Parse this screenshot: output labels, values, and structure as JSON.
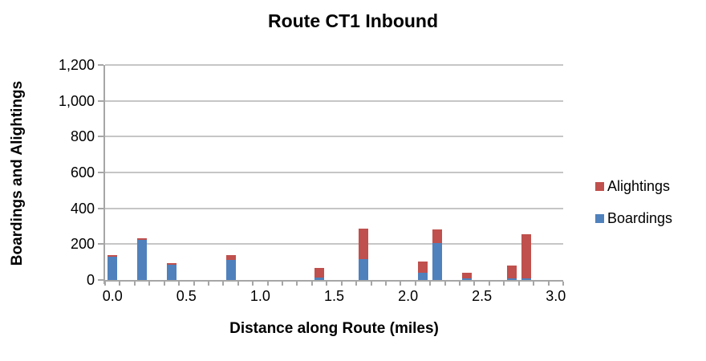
{
  "chart_data": {
    "type": "bar",
    "stacked": true,
    "title": "Route CT1 Inbound",
    "xlabel": "Distance along Route (miles)",
    "ylabel": "Boardings and Alightings",
    "x_values": [
      0.0,
      0.2,
      0.4,
      0.8,
      1.4,
      1.7,
      2.1,
      2.2,
      2.4,
      2.7,
      2.8
    ],
    "series": [
      {
        "name": "Boardings",
        "color": "#4F81BD",
        "values": [
          130,
          225,
          85,
          110,
          15,
          115,
          40,
          205,
          10,
          10,
          10
        ]
      },
      {
        "name": "Alightings",
        "color": "#C0504D",
        "values": [
          10,
          10,
          10,
          30,
          50,
          170,
          65,
          75,
          30,
          70,
          245
        ]
      }
    ],
    "y_axis": {
      "min": 0,
      "max": 1200,
      "step": 200,
      "tick_labels": [
        "0",
        "200",
        "400",
        "600",
        "800",
        "1,000",
        "1,200"
      ]
    },
    "x_axis": {
      "min": 0.0,
      "max": 3.0,
      "category_step": 0.1,
      "label_step": 0.5,
      "tick_labels": [
        "0.0",
        "0.5",
        "1.0",
        "1.5",
        "2.0",
        "2.5",
        "3.0"
      ]
    },
    "legend": {
      "position": "right",
      "entries": [
        {
          "label": "Alightings",
          "color": "#C0504D"
        },
        {
          "label": "Boardings",
          "color": "#4F81BD"
        }
      ]
    },
    "grid": true,
    "colors": {
      "gridline": "#C6C6C6",
      "axis": "#A6A6A6",
      "text": "#000000",
      "background": "#FFFFFF"
    }
  }
}
